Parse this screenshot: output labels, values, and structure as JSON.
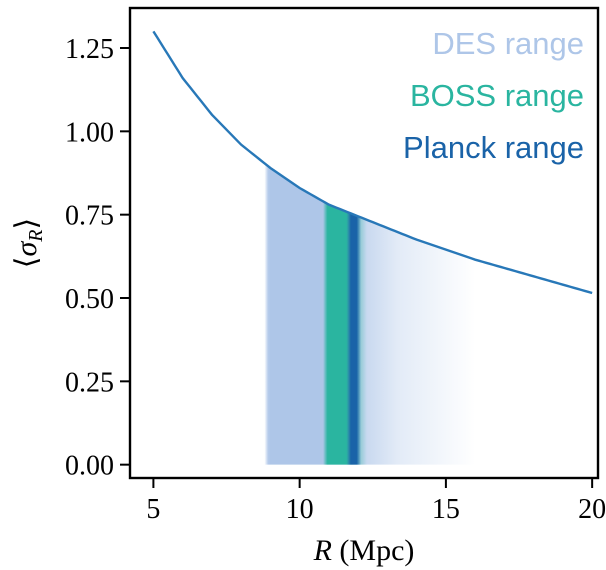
{
  "chart_data": {
    "type": "line",
    "title": "",
    "xlabel": {
      "var": "R",
      "unit": " (Mpc)"
    },
    "ylabel": {
      "open": "⟨",
      "var": "σ",
      "sub": "R",
      "close": "⟩"
    },
    "xlim": [
      4.2,
      20.2
    ],
    "ylim": [
      -0.04,
      1.37
    ],
    "xticks": [
      5,
      10,
      15,
      20
    ],
    "xtick_labels": [
      "5",
      "10",
      "15",
      "20"
    ],
    "yticks": [
      0.0,
      0.25,
      0.5,
      0.75,
      1.0,
      1.25
    ],
    "ytick_labels": [
      "0.00",
      "0.25",
      "0.50",
      "0.75",
      "1.00",
      "1.25"
    ],
    "grid": false,
    "legend_position": "top-right",
    "series": [
      {
        "type": "line",
        "color": "#2878b8",
        "x": [
          5,
          6,
          7,
          8,
          9,
          10,
          11,
          12,
          13,
          14,
          15,
          16,
          17,
          18,
          19,
          20
        ],
        "y": [
          1.3,
          1.16,
          1.05,
          0.96,
          0.89,
          0.83,
          0.78,
          0.745,
          0.71,
          0.675,
          0.645,
          0.615,
          0.59,
          0.565,
          0.54,
          0.515
        ]
      }
    ],
    "bands": [
      {
        "label": "DES range",
        "color": "#aec6e8",
        "x_lo": 8.8,
        "x_hi": 16.0,
        "core_lo": 9.0,
        "core_hi": 11.2,
        "fade": "right"
      },
      {
        "label": "BOSS range",
        "color": "#2ab5a0",
        "x_lo": 10.8,
        "x_hi": 12.3,
        "core_lo": 10.95,
        "core_hi": 11.6,
        "fade": "both"
      },
      {
        "label": "Planck range",
        "color": "#1a63a8",
        "x_lo": 11.6,
        "x_hi": 12.1,
        "core_lo": 11.75,
        "core_hi": 11.95,
        "fade": "both"
      }
    ]
  }
}
